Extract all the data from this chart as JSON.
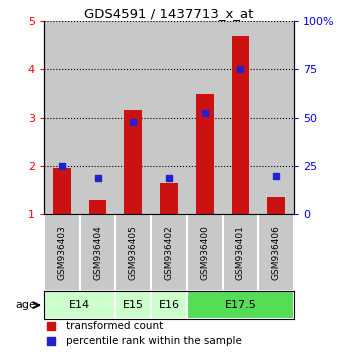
{
  "title": "GDS4591 / 1437713_x_at",
  "samples": [
    "GSM936403",
    "GSM936404",
    "GSM936405",
    "GSM936402",
    "GSM936400",
    "GSM936401",
    "GSM936406"
  ],
  "transformed_count": [
    1.95,
    1.3,
    3.15,
    1.65,
    3.5,
    4.7,
    1.35
  ],
  "percentile_rank": [
    2.0,
    1.75,
    2.92,
    1.75,
    3.1,
    4.0,
    1.78
  ],
  "ylim_left": [
    1,
    5
  ],
  "ylim_right": [
    0,
    100
  ],
  "yticks_left": [
    1,
    2,
    3,
    4,
    5
  ],
  "yticks_right": [
    0,
    25,
    50,
    75,
    100
  ],
  "bar_color": "#cc1111",
  "marker_color": "#2222cc",
  "bar_width": 0.5,
  "group_spans": [
    {
      "label": "E14",
      "start": 0,
      "end": 1,
      "color": "#ccffcc"
    },
    {
      "label": "E15",
      "start": 2,
      "end": 2,
      "color": "#ccffcc"
    },
    {
      "label": "E16",
      "start": 3,
      "end": 3,
      "color": "#ccffcc"
    },
    {
      "label": "E17.5",
      "start": 4,
      "end": 6,
      "color": "#55dd55"
    }
  ],
  "legend_items": [
    {
      "color": "#cc1111",
      "label": "transformed count"
    },
    {
      "color": "#2222cc",
      "label": "percentile rank within the sample"
    }
  ],
  "age_label": "age",
  "col_bg_color": "#c8c8c8",
  "plot_bg_color": "#ffffff"
}
